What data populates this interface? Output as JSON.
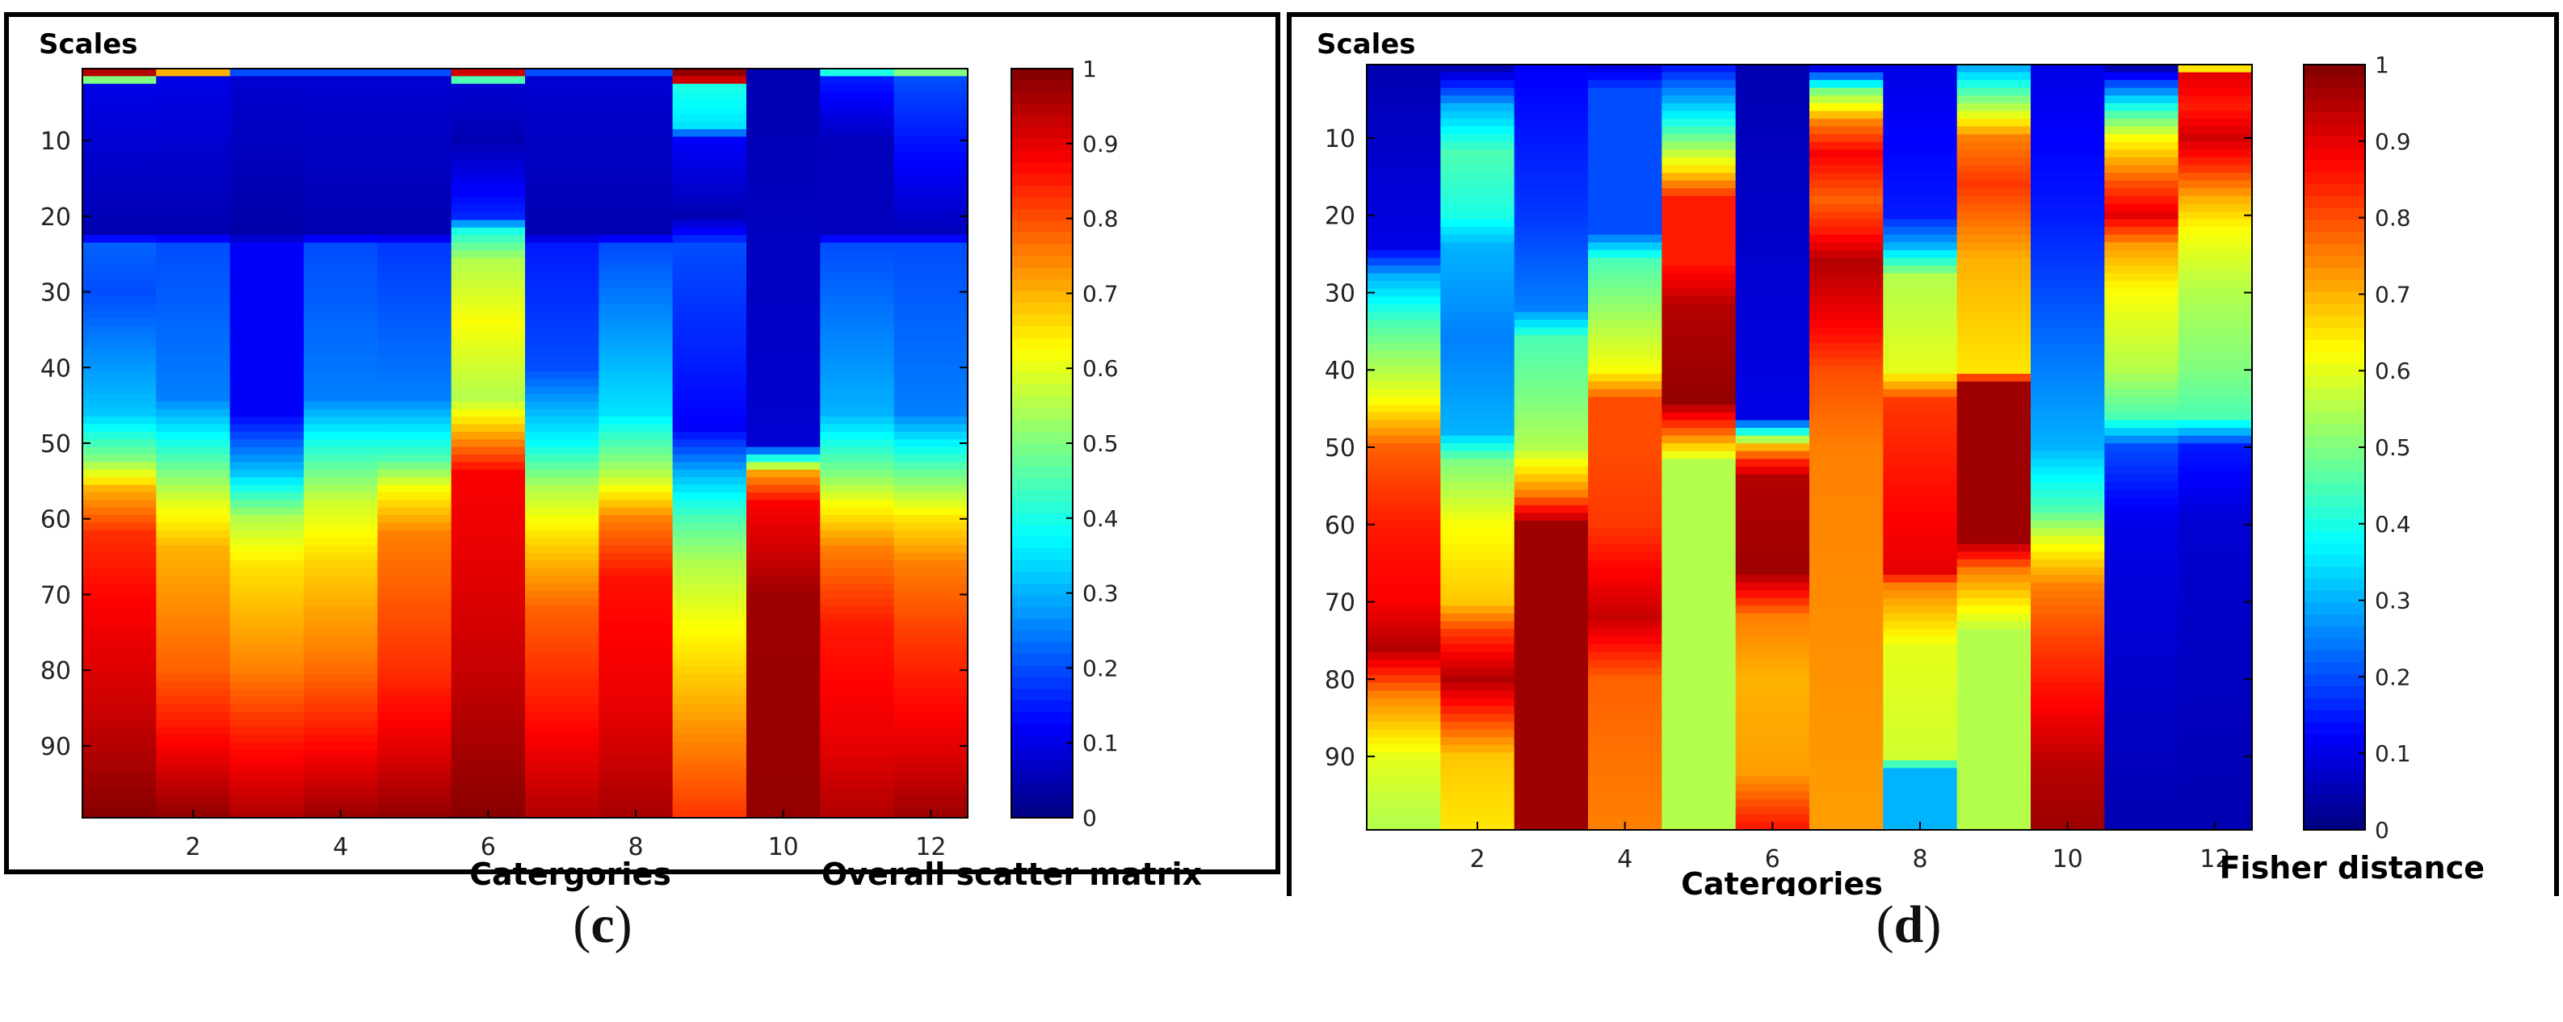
{
  "chart_data": [
    {
      "type": "heatmap",
      "panel_label": "c",
      "y_title": "Scales",
      "xlabel": "Catergories",
      "colorbar_label": "Overall scatter matrix",
      "colormap": "jet",
      "clim": [
        0,
        1
      ],
      "colorbar_ticks": [
        "0",
        "0.1",
        "0.2",
        "0.3",
        "0.4",
        "0.5",
        "0.6",
        "0.7",
        "0.8",
        "0.9",
        "1"
      ],
      "x_ticks": [
        "2",
        "4",
        "6",
        "8",
        "10",
        "12"
      ],
      "y_ticks": [
        "10",
        "20",
        "30",
        "40",
        "50",
        "60",
        "70",
        "80",
        "90"
      ],
      "n_categories": 12,
      "n_scales": 99,
      "columns": [
        [
          [
            1,
            0.95
          ],
          [
            2,
            0.5
          ],
          [
            3,
            0.1
          ],
          [
            22,
            0.05
          ],
          [
            24,
            0.22
          ],
          [
            30,
            0.2
          ],
          [
            46,
            0.32
          ],
          [
            52,
            0.5
          ],
          [
            56,
            0.7
          ],
          [
            62,
            0.83
          ],
          [
            72,
            0.88
          ],
          [
            86,
            0.93
          ],
          [
            99,
            0.99
          ]
        ],
        [
          [
            1,
            0.7
          ],
          [
            2,
            0.1
          ],
          [
            22,
            0.05
          ],
          [
            24,
            0.2
          ],
          [
            44,
            0.25
          ],
          [
            52,
            0.45
          ],
          [
            58,
            0.6
          ],
          [
            64,
            0.7
          ],
          [
            80,
            0.78
          ],
          [
            90,
            0.88
          ],
          [
            99,
            0.98
          ]
        ],
        [
          [
            1,
            0.2
          ],
          [
            2,
            0.08
          ],
          [
            22,
            0.04
          ],
          [
            24,
            0.12
          ],
          [
            46,
            0.12
          ],
          [
            54,
            0.32
          ],
          [
            60,
            0.55
          ],
          [
            66,
            0.65
          ],
          [
            80,
            0.75
          ],
          [
            90,
            0.86
          ],
          [
            99,
            0.95
          ]
        ],
        [
          [
            1,
            0.2
          ],
          [
            2,
            0.08
          ],
          [
            22,
            0.05
          ],
          [
            24,
            0.2
          ],
          [
            44,
            0.25
          ],
          [
            50,
            0.4
          ],
          [
            58,
            0.58
          ],
          [
            66,
            0.67
          ],
          [
            80,
            0.77
          ],
          [
            90,
            0.87
          ],
          [
            99,
            0.97
          ]
        ],
        [
          [
            1,
            0.2
          ],
          [
            2,
            0.08
          ],
          [
            22,
            0.05
          ],
          [
            24,
            0.18
          ],
          [
            44,
            0.25
          ],
          [
            52,
            0.45
          ],
          [
            56,
            0.62
          ],
          [
            62,
            0.75
          ],
          [
            80,
            0.83
          ],
          [
            90,
            0.9
          ],
          [
            99,
            0.98
          ]
        ],
        [
          [
            1,
            0.92
          ],
          [
            2,
            0.45
          ],
          [
            3,
            0.08
          ],
          [
            10,
            0.05
          ],
          [
            20,
            0.16
          ],
          [
            22,
            0.4
          ],
          [
            26,
            0.55
          ],
          [
            34,
            0.62
          ],
          [
            44,
            0.55
          ],
          [
            50,
            0.75
          ],
          [
            54,
            0.88
          ],
          [
            66,
            0.9
          ],
          [
            80,
            0.93
          ],
          [
            99,
            0.99
          ]
        ],
        [
          [
            1,
            0.2
          ],
          [
            2,
            0.08
          ],
          [
            22,
            0.05
          ],
          [
            24,
            0.15
          ],
          [
            40,
            0.2
          ],
          [
            50,
            0.38
          ],
          [
            56,
            0.55
          ],
          [
            62,
            0.65
          ],
          [
            72,
            0.78
          ],
          [
            86,
            0.86
          ],
          [
            99,
            0.95
          ]
        ],
        [
          [
            1,
            0.2
          ],
          [
            2,
            0.08
          ],
          [
            22,
            0.05
          ],
          [
            24,
            0.2
          ],
          [
            36,
            0.28
          ],
          [
            46,
            0.35
          ],
          [
            54,
            0.55
          ],
          [
            60,
            0.75
          ],
          [
            68,
            0.86
          ],
          [
            86,
            0.9
          ],
          [
            99,
            0.96
          ]
        ],
        [
          [
            1,
            0.98
          ],
          [
            2,
            0.92
          ],
          [
            3,
            0.4
          ],
          [
            8,
            0.35
          ],
          [
            10,
            0.12
          ],
          [
            20,
            0.05
          ],
          [
            24,
            0.2
          ],
          [
            40,
            0.15
          ],
          [
            48,
            0.12
          ],
          [
            54,
            0.3
          ],
          [
            60,
            0.45
          ],
          [
            66,
            0.55
          ],
          [
            74,
            0.62
          ],
          [
            90,
            0.75
          ],
          [
            99,
            0.82
          ]
        ],
        [
          [
            1,
            0.05
          ],
          [
            50,
            0.08
          ],
          [
            54,
            0.72
          ],
          [
            58,
            0.88
          ],
          [
            64,
            0.92
          ],
          [
            70,
            0.97
          ],
          [
            99,
            0.98
          ]
        ],
        [
          [
            1,
            0.4
          ],
          [
            2,
            0.15
          ],
          [
            10,
            0.06
          ],
          [
            22,
            0.06
          ],
          [
            24,
            0.2
          ],
          [
            46,
            0.3
          ],
          [
            54,
            0.5
          ],
          [
            58,
            0.62
          ],
          [
            64,
            0.75
          ],
          [
            74,
            0.85
          ],
          [
            90,
            0.9
          ],
          [
            99,
            0.95
          ]
        ],
        [
          [
            1,
            0.5
          ],
          [
            2,
            0.2
          ],
          [
            22,
            0.06
          ],
          [
            24,
            0.2
          ],
          [
            46,
            0.25
          ],
          [
            54,
            0.48
          ],
          [
            60,
            0.65
          ],
          [
            66,
            0.75
          ],
          [
            76,
            0.82
          ],
          [
            90,
            0.9
          ],
          [
            99,
            0.97
          ]
        ]
      ]
    },
    {
      "type": "heatmap",
      "panel_label": "d",
      "y_title": "Scales",
      "xlabel": "Catergories",
      "colorbar_label": "Fisher distance",
      "colormap": "jet",
      "clim": [
        0,
        1
      ],
      "colorbar_ticks": [
        "0",
        "0.1",
        "0.2",
        "0.3",
        "0.4",
        "0.5",
        "0.6",
        "0.7",
        "0.8",
        "0.9",
        "1"
      ],
      "x_ticks": [
        "2",
        "4",
        "6",
        "8",
        "10",
        "12"
      ],
      "y_ticks": [
        "10",
        "20",
        "30",
        "40",
        "50",
        "60",
        "70",
        "80",
        "90"
      ],
      "n_categories": 12,
      "n_scales": 99,
      "columns": [
        [
          [
            1,
            0.05
          ],
          [
            24,
            0.1
          ],
          [
            28,
            0.3
          ],
          [
            34,
            0.45
          ],
          [
            40,
            0.55
          ],
          [
            44,
            0.62
          ],
          [
            50,
            0.78
          ],
          [
            60,
            0.85
          ],
          [
            70,
            0.88
          ],
          [
            76,
            0.95
          ],
          [
            82,
            0.75
          ],
          [
            90,
            0.6
          ],
          [
            99,
            0.55
          ]
        ],
        [
          [
            1,
            0.05
          ],
          [
            6,
            0.3
          ],
          [
            12,
            0.45
          ],
          [
            20,
            0.4
          ],
          [
            24,
            0.3
          ],
          [
            36,
            0.25
          ],
          [
            48,
            0.3
          ],
          [
            52,
            0.5
          ],
          [
            60,
            0.62
          ],
          [
            70,
            0.68
          ],
          [
            74,
            0.82
          ],
          [
            80,
            0.95
          ],
          [
            90,
            0.68
          ],
          [
            99,
            0.65
          ]
        ],
        [
          [
            1,
            0.12
          ],
          [
            20,
            0.18
          ],
          [
            32,
            0.25
          ],
          [
            36,
            0.45
          ],
          [
            44,
            0.5
          ],
          [
            50,
            0.55
          ],
          [
            56,
            0.75
          ],
          [
            60,
            0.97
          ],
          [
            99,
            0.97
          ]
        ],
        [
          [
            1,
            0.1
          ],
          [
            4,
            0.2
          ],
          [
            22,
            0.2
          ],
          [
            26,
            0.45
          ],
          [
            40,
            0.62
          ],
          [
            44,
            0.8
          ],
          [
            50,
            0.8
          ],
          [
            60,
            0.82
          ],
          [
            72,
            0.93
          ],
          [
            80,
            0.78
          ],
          [
            99,
            0.75
          ]
        ],
        [
          [
            1,
            0.15
          ],
          [
            8,
            0.4
          ],
          [
            14,
            0.65
          ],
          [
            18,
            0.85
          ],
          [
            26,
            0.85
          ],
          [
            32,
            0.95
          ],
          [
            44,
            0.98
          ],
          [
            48,
            0.78
          ],
          [
            52,
            0.55
          ],
          [
            99,
            0.55
          ]
        ],
        [
          [
            1,
            0.05
          ],
          [
            46,
            0.1
          ],
          [
            50,
            0.7
          ],
          [
            52,
            0.85
          ],
          [
            54,
            0.95
          ],
          [
            66,
            0.97
          ],
          [
            72,
            0.75
          ],
          [
            80,
            0.7
          ],
          [
            92,
            0.72
          ],
          [
            99,
            0.85
          ]
        ],
        [
          [
            1,
            0.1
          ],
          [
            4,
            0.5
          ],
          [
            8,
            0.75
          ],
          [
            12,
            0.88
          ],
          [
            18,
            0.78
          ],
          [
            22,
            0.85
          ],
          [
            26,
            0.95
          ],
          [
            34,
            0.88
          ],
          [
            40,
            0.8
          ],
          [
            50,
            0.75
          ],
          [
            99,
            0.72
          ]
        ],
        [
          [
            1,
            0.1
          ],
          [
            20,
            0.15
          ],
          [
            24,
            0.3
          ],
          [
            28,
            0.55
          ],
          [
            40,
            0.6
          ],
          [
            44,
            0.82
          ],
          [
            60,
            0.88
          ],
          [
            66,
            0.9
          ],
          [
            68,
            0.75
          ],
          [
            76,
            0.6
          ],
          [
            90,
            0.58
          ],
          [
            92,
            0.3
          ],
          [
            99,
            0.3
          ]
        ],
        [
          [
            1,
            0.3
          ],
          [
            6,
            0.55
          ],
          [
            10,
            0.75
          ],
          [
            16,
            0.82
          ],
          [
            26,
            0.7
          ],
          [
            40,
            0.65
          ],
          [
            42,
            0.97
          ],
          [
            62,
            0.97
          ],
          [
            66,
            0.75
          ],
          [
            74,
            0.55
          ],
          [
            99,
            0.55
          ]
        ],
        [
          [
            1,
            0.1
          ],
          [
            20,
            0.15
          ],
          [
            40,
            0.25
          ],
          [
            50,
            0.3
          ],
          [
            58,
            0.45
          ],
          [
            62,
            0.6
          ],
          [
            68,
            0.75
          ],
          [
            76,
            0.82
          ],
          [
            84,
            0.88
          ],
          [
            92,
            0.95
          ],
          [
            99,
            0.97
          ]
        ],
        [
          [
            1,
            0.05
          ],
          [
            3,
            0.2
          ],
          [
            6,
            0.4
          ],
          [
            10,
            0.62
          ],
          [
            16,
            0.8
          ],
          [
            20,
            0.9
          ],
          [
            24,
            0.72
          ],
          [
            30,
            0.62
          ],
          [
            40,
            0.55
          ],
          [
            46,
            0.45
          ],
          [
            50,
            0.2
          ],
          [
            60,
            0.1
          ],
          [
            99,
            0.05
          ]
        ],
        [
          [
            1,
            0.65
          ],
          [
            2,
            0.9
          ],
          [
            6,
            0.85
          ],
          [
            10,
            0.92
          ],
          [
            14,
            0.82
          ],
          [
            18,
            0.7
          ],
          [
            22,
            0.62
          ],
          [
            30,
            0.55
          ],
          [
            40,
            0.5
          ],
          [
            46,
            0.45
          ],
          [
            50,
            0.15
          ],
          [
            60,
            0.08
          ],
          [
            99,
            0.05
          ]
        ]
      ]
    }
  ]
}
